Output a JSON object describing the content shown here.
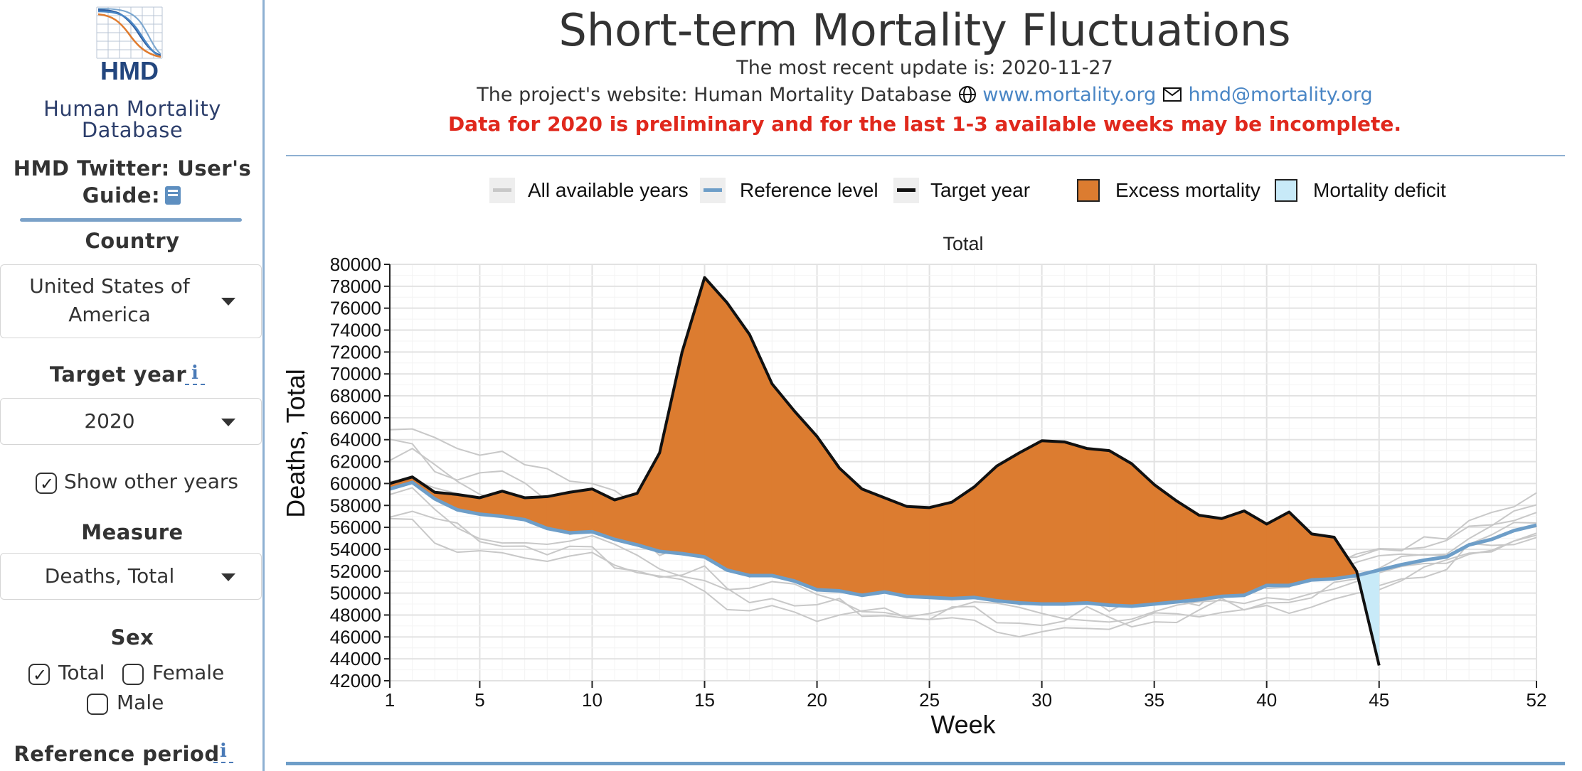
{
  "sidebar": {
    "logo_text": "HMD",
    "brand_line1": "Human Mortality",
    "brand_line2": "Database",
    "links_line1": "HMD Twitter:  User's",
    "links_line2": "Guide:",
    "country_label": "Country",
    "country_line1": "United States of",
    "country_line2": "America",
    "target_year_label": "Target year",
    "target_year_value": "2020",
    "show_other_years": "Show other years",
    "measure_label": "Measure",
    "measure_value": "Deaths, Total",
    "sex_label": "Sex",
    "sex_total": "Total",
    "sex_female": "Female",
    "sex_male": "Male",
    "reference_period_label": "Reference period",
    "info_glyph": "i",
    "book_icon": "book-icon"
  },
  "header": {
    "title": "Short-term Mortality Fluctuations",
    "update_text": "The most recent update is: 2020-11-27",
    "website_prefix": "The project's website: Human Mortality Database",
    "website_link": "www.mortality.org",
    "email_link": "hmd@mortality.org",
    "warning": "Data for 2020 is preliminary and for the last 1-3 available weeks may be incomplete."
  },
  "legend": {
    "all_years": "All available years",
    "reference": "Reference level",
    "target": "Target year",
    "excess": "Excess mortality",
    "deficit": "Mortality deficit"
  },
  "colors": {
    "excess": "#dc7c30",
    "deficit": "#c8eaf8",
    "reference": "#6e9ec8",
    "target": "#111111",
    "other_years": "#c8c8c8",
    "warning": "#e0281c",
    "link": "#4a86c5"
  },
  "chart_data": {
    "type": "line",
    "title": "Total",
    "xlabel": "Week",
    "ylabel": "Deaths, Total",
    "xlim": [
      1,
      52
    ],
    "ylim": [
      42000,
      80000
    ],
    "x_ticks": [
      1,
      5,
      10,
      15,
      20,
      25,
      30,
      35,
      40,
      45,
      52
    ],
    "y_ticks": [
      42000,
      44000,
      46000,
      48000,
      50000,
      52000,
      54000,
      56000,
      58000,
      60000,
      62000,
      64000,
      66000,
      68000,
      70000,
      72000,
      74000,
      76000,
      78000,
      80000
    ],
    "grid": true,
    "series": [
      {
        "name": "Target year",
        "x": [
          1,
          2,
          3,
          4,
          5,
          6,
          7,
          8,
          9,
          10,
          11,
          12,
          13,
          14,
          15,
          16,
          17,
          18,
          19,
          20,
          21,
          22,
          23,
          24,
          25,
          26,
          27,
          28,
          29,
          30,
          31,
          32,
          33,
          34,
          35,
          36,
          37,
          38,
          39,
          40,
          41,
          42,
          43,
          44,
          45
        ],
        "values": [
          60000,
          60600,
          59200,
          59000,
          58700,
          59300,
          58700,
          58800,
          59200,
          59500,
          58500,
          59100,
          62800,
          72000,
          78800,
          76500,
          73600,
          69100,
          66600,
          64300,
          61400,
          59500,
          58700,
          57900,
          57800,
          58300,
          59700,
          61600,
          62800,
          63900,
          63800,
          63200,
          63000,
          61800,
          59900,
          58400,
          57100,
          56800,
          57500,
          56300,
          57400,
          55400,
          55100,
          52000,
          43400
        ]
      },
      {
        "name": "Reference level",
        "x": [
          1,
          2,
          3,
          4,
          5,
          6,
          7,
          8,
          9,
          10,
          11,
          12,
          13,
          14,
          15,
          16,
          17,
          18,
          19,
          20,
          21,
          22,
          23,
          24,
          25,
          26,
          27,
          28,
          29,
          30,
          31,
          32,
          33,
          34,
          35,
          36,
          37,
          38,
          39,
          40,
          41,
          42,
          43,
          44,
          45,
          46,
          47,
          48,
          49,
          50,
          51,
          52
        ],
        "values": [
          59500,
          60100,
          58600,
          57600,
          57200,
          57000,
          56700,
          55900,
          55500,
          55600,
          54900,
          54400,
          53800,
          53600,
          53300,
          52100,
          51600,
          51600,
          51100,
          50300,
          50200,
          49800,
          50100,
          49700,
          49600,
          49500,
          49600,
          49300,
          49100,
          49000,
          49000,
          49100,
          48900,
          48800,
          49000,
          49200,
          49400,
          49700,
          49800,
          50700,
          50700,
          51200,
          51300,
          51600,
          52100,
          52600,
          53000,
          53300,
          54400,
          54900,
          55700,
          56200
        ]
      }
    ]
  }
}
